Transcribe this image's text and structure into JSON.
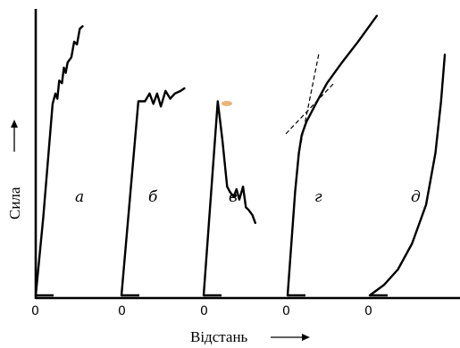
{
  "chart_data": {
    "type": "line",
    "title": "",
    "xlabel": "Відстань",
    "ylabel": "Сила",
    "panels": [
      {
        "label": "а",
        "zero_label": "0",
        "points": [
          [
            0,
            0
          ],
          [
            0.08,
            0.3
          ],
          [
            0.18,
            0.74
          ],
          [
            0.21,
            0.78
          ],
          [
            0.23,
            0.76
          ],
          [
            0.25,
            0.83
          ],
          [
            0.28,
            0.82
          ],
          [
            0.3,
            0.88
          ],
          [
            0.32,
            0.86
          ],
          [
            0.34,
            0.9
          ],
          [
            0.38,
            0.92
          ],
          [
            0.41,
            0.98
          ],
          [
            0.44,
            0.97
          ],
          [
            0.47,
            1.03
          ],
          [
            0.5,
            1.04
          ]
        ]
      },
      {
        "label": "б",
        "zero_label": "0",
        "points": [
          [
            0,
            0
          ],
          [
            0.18,
            0.75
          ],
          [
            0.25,
            0.75
          ],
          [
            0.3,
            0.78
          ],
          [
            0.34,
            0.74
          ],
          [
            0.38,
            0.78
          ],
          [
            0.42,
            0.73
          ],
          [
            0.47,
            0.79
          ],
          [
            0.52,
            0.76
          ],
          [
            0.57,
            0.78
          ],
          [
            0.63,
            0.79
          ],
          [
            0.67,
            0.8
          ]
        ]
      },
      {
        "label": "в",
        "zero_label": "0",
        "points": [
          [
            0,
            0
          ],
          [
            0.15,
            0.75
          ],
          [
            0.2,
            0.6
          ],
          [
            0.25,
            0.42
          ],
          [
            0.28,
            0.4
          ],
          [
            0.32,
            0.38
          ],
          [
            0.35,
            0.41
          ],
          [
            0.38,
            0.37
          ],
          [
            0.42,
            0.42
          ],
          [
            0.45,
            0.34
          ],
          [
            0.48,
            0.33
          ],
          [
            0.52,
            0.31
          ],
          [
            0.55,
            0.28
          ]
        ]
      },
      {
        "label": "г",
        "zero_label": "0",
        "points": [
          [
            0,
            0
          ],
          [
            0.08,
            0.4
          ],
          [
            0.12,
            0.55
          ],
          [
            0.15,
            0.62
          ],
          [
            0.2,
            0.67
          ],
          [
            0.3,
            0.74
          ],
          [
            0.42,
            0.82
          ],
          [
            0.58,
            0.9
          ],
          [
            0.75,
            0.98
          ],
          [
            0.95,
            1.08
          ]
        ]
      },
      {
        "label": "д",
        "zero_label": "0",
        "points": [
          [
            0,
            0
          ],
          [
            0.15,
            0.04
          ],
          [
            0.3,
            0.1
          ],
          [
            0.45,
            0.2
          ],
          [
            0.6,
            0.35
          ],
          [
            0.7,
            0.55
          ],
          [
            0.76,
            0.75
          ],
          [
            0.8,
            0.93
          ]
        ]
      }
    ]
  }
}
